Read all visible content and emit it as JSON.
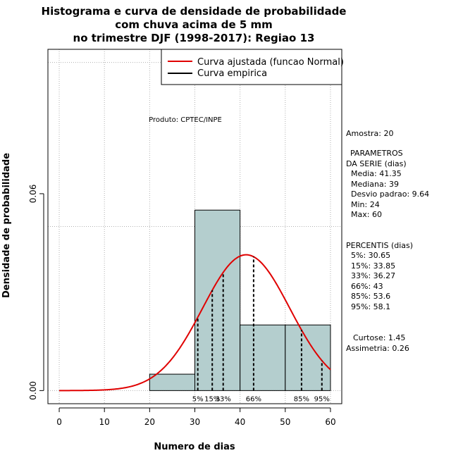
{
  "chart_data": {
    "type": "histogram",
    "title_lines": [
      "Histograma e curva de densidade de probabilidade",
      "com chuva acima de 5 mm",
      "no trimestre DJF (1998-2017): Regiao 13"
    ],
    "xlabel": "Numero de dias",
    "ylabel": "Densidade de probabilidade",
    "xlim": [
      -2.5,
      62.5
    ],
    "ylim": [
      -0.004,
      0.104
    ],
    "x_ticks": [
      0,
      10,
      20,
      30,
      40,
      50,
      60
    ],
    "y_ticks": [
      0.0,
      0.06
    ],
    "y_tick_labels": [
      "0.00",
      "0.06"
    ],
    "grid_x": [
      0,
      10,
      20,
      30,
      40,
      50,
      60
    ],
    "grid_y": [
      0.0,
      0.05,
      0.1
    ],
    "bins": [
      {
        "x0": 20,
        "x1": 30,
        "density": 0.005
      },
      {
        "x0": 30,
        "x1": 40,
        "density": 0.055
      },
      {
        "x0": 40,
        "x1": 50,
        "density": 0.02
      },
      {
        "x0": 50,
        "x1": 60,
        "density": 0.02
      }
    ],
    "bar_color": "#b4cece",
    "normal_fit": {
      "mean": 41.35,
      "sd": 9.64,
      "xmin": 0,
      "xmax": 60,
      "color": "#e00000"
    },
    "percentile_lines": [
      {
        "label": "5%",
        "x": 30.65
      },
      {
        "label": "15%",
        "x": 33.85
      },
      {
        "label": "33%",
        "x": 36.27
      },
      {
        "label": "66%",
        "x": 43
      },
      {
        "label": "85%",
        "x": 53.6
      },
      {
        "label": "95%",
        "x": 58.1
      }
    ],
    "legend": [
      {
        "label": "Curva ajustada (funcao Normal)",
        "color": "#e00000"
      },
      {
        "label": "Curva empirica",
        "color": "#000000"
      }
    ],
    "legend_position": "top-right",
    "annotation": "Produto: CPTEC/INPE"
  },
  "side_panel": {
    "amostra": "Amostra: 20",
    "param_title_1": "PARAMETROS",
    "param_title_2": "DA SERIE (dias)",
    "media": "Media: 41.35",
    "mediana": "Mediana: 39",
    "desvio": "Desvio padrao: 9.64",
    "min": "Min: 24",
    "max": "Max: 60",
    "percentis_title": "PERCENTIS (dias)",
    "p5": "5%: 30.65",
    "p15": "15%: 33.85",
    "p33": "33%: 36.27",
    "p66": "66%: 43",
    "p85": "85%: 53.6",
    "p95": "95%: 58.1",
    "curtose": "Curtose: 1.45",
    "assimetria": "Assimetria: 0.26"
  }
}
